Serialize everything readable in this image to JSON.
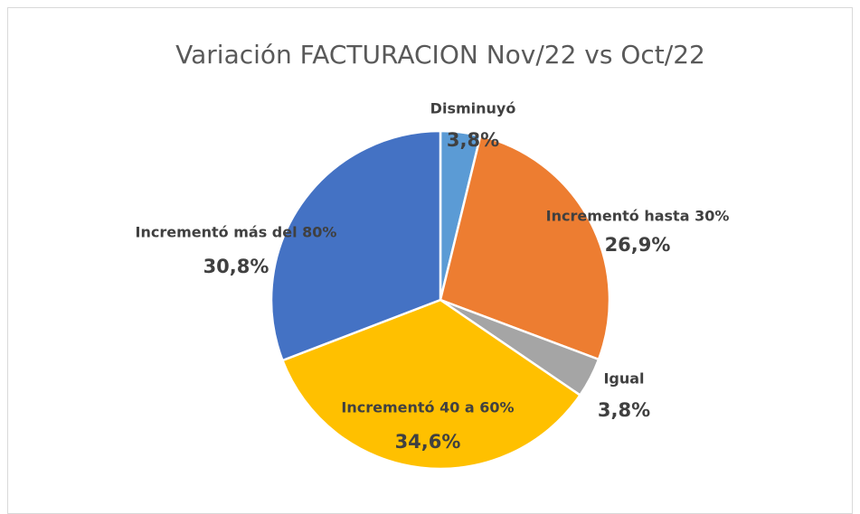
{
  "chart_data": {
    "type": "pie",
    "title": "Variación FACTURACION Nov/22 vs Oct/22",
    "categories": [
      "Disminuyó",
      "Incrementó hasta 30%",
      "Igual",
      "Incrementó 40 a 60%",
      "Incrementó más del 80%"
    ],
    "values": [
      3.8,
      26.9,
      3.8,
      34.6,
      30.8
    ],
    "value_labels": [
      "3,8%",
      "26,9%",
      "3,8%",
      "34,6%",
      "30,8%"
    ],
    "colors": [
      "#5b9bd5",
      "#ed7d31",
      "#a5a5a5",
      "#ffc000",
      "#4472c4"
    ]
  }
}
